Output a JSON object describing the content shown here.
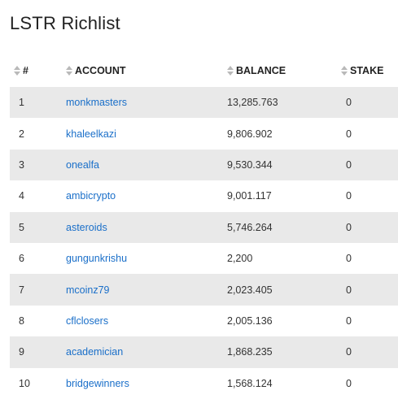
{
  "page": {
    "title": "LSTR Richlist"
  },
  "table": {
    "headers": {
      "rank": "#",
      "account": "ACCOUNT",
      "balance": "BALANCE",
      "stake": "STAKE"
    },
    "rows": [
      {
        "rank": "1",
        "account": "monkmasters",
        "balance": "13,285.763",
        "stake": "0"
      },
      {
        "rank": "2",
        "account": "khaleelkazi",
        "balance": "9,806.902",
        "stake": "0"
      },
      {
        "rank": "3",
        "account": "onealfa",
        "balance": "9,530.344",
        "stake": "0"
      },
      {
        "rank": "4",
        "account": "ambicrypto",
        "balance": "9,001.117",
        "stake": "0"
      },
      {
        "rank": "5",
        "account": "asteroids",
        "balance": "5,746.264",
        "stake": "0"
      },
      {
        "rank": "6",
        "account": "gungunkrishu",
        "balance": "2,200",
        "stake": "0"
      },
      {
        "rank": "7",
        "account": "mcoinz79",
        "balance": "2,023.405",
        "stake": "0"
      },
      {
        "rank": "8",
        "account": "cflclosers",
        "balance": "2,005.136",
        "stake": "0"
      },
      {
        "rank": "9",
        "account": "academician",
        "balance": "1,868.235",
        "stake": "0"
      },
      {
        "rank": "10",
        "account": "bridgewinners",
        "balance": "1,568.124",
        "stake": "0"
      }
    ]
  },
  "icons": {
    "sort": "sort-icon"
  },
  "colors": {
    "link": "#1a6fc9",
    "row_stripe": "#e9e9e9",
    "sort_arrow": "#b9b9b9"
  }
}
